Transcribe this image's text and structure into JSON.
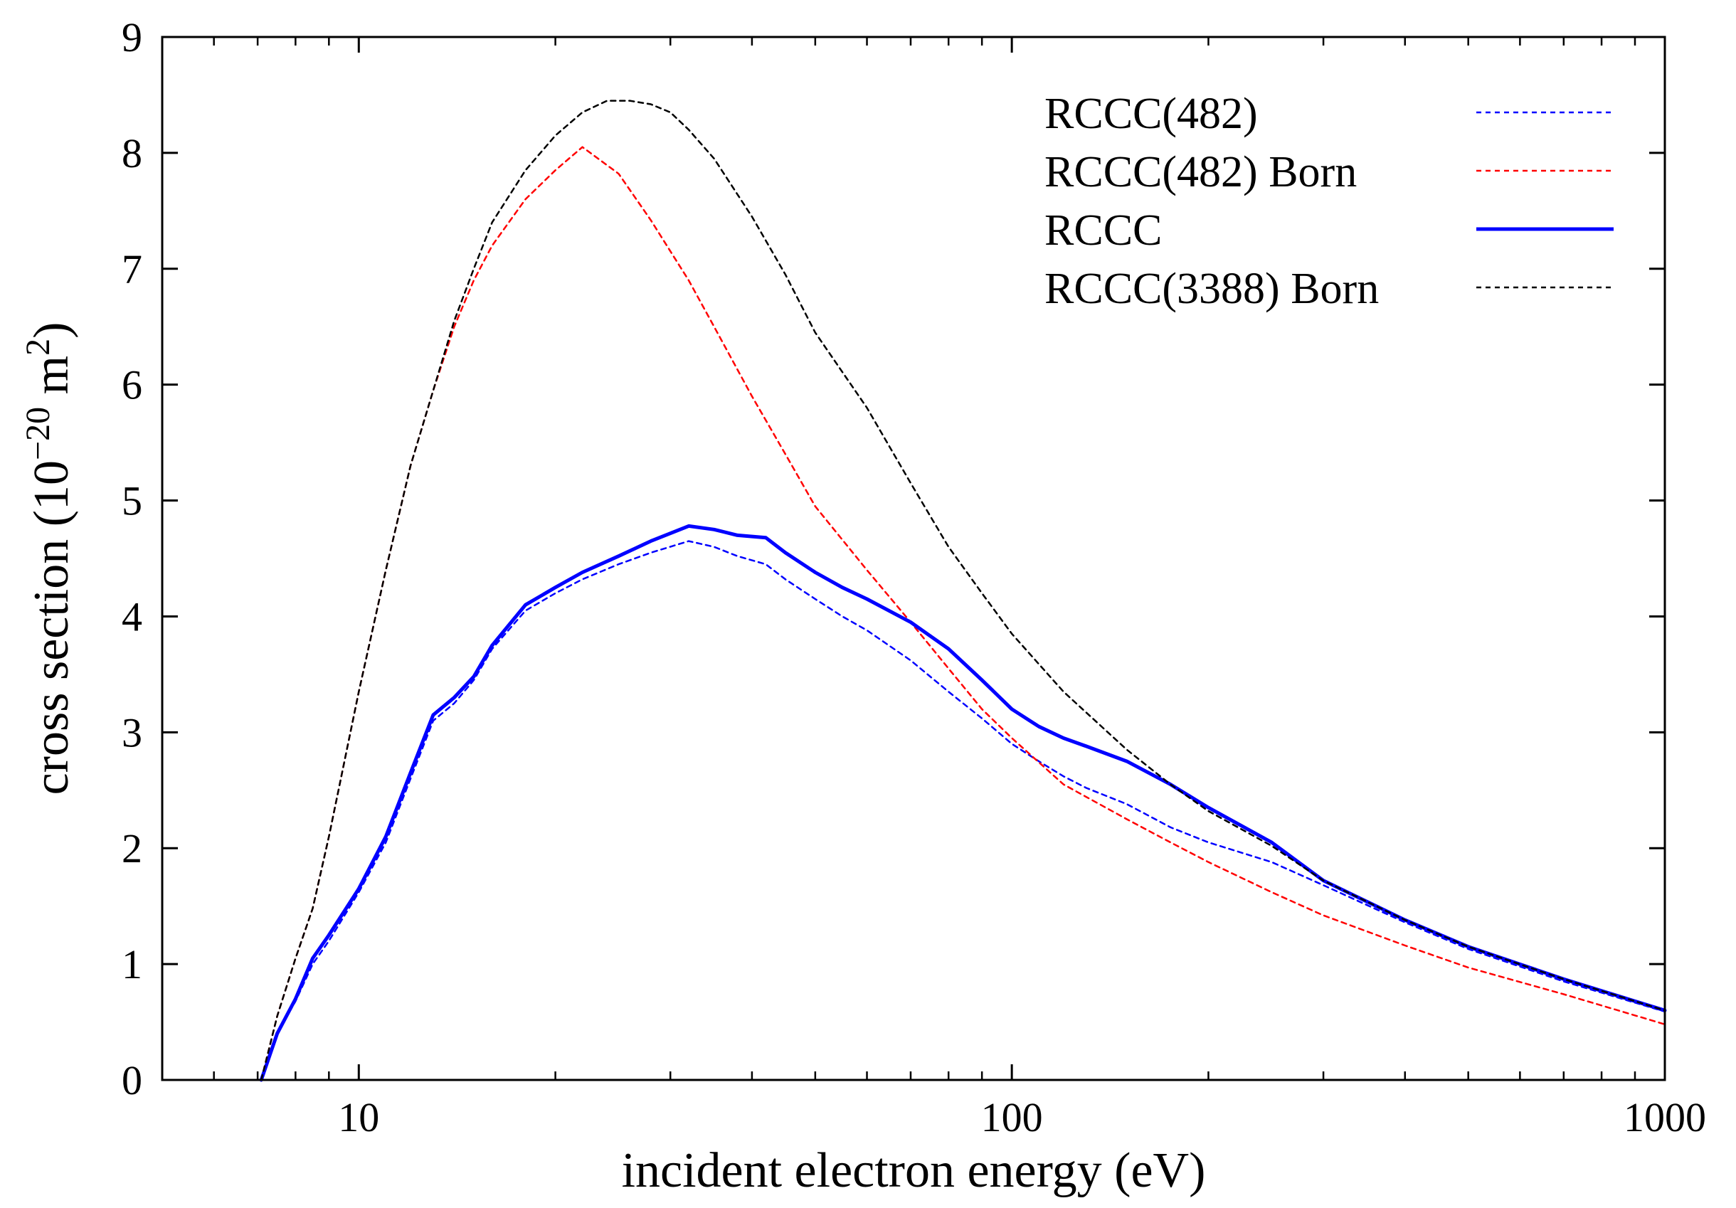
{
  "chart_data": {
    "type": "line",
    "title": "",
    "xlabel": "incident electron energy (eV)",
    "ylabel": {
      "prefix": "cross section (10",
      "exponent": "−20",
      "middle": " m",
      "exponent2": "2",
      "suffix": ")"
    },
    "xscale": "log",
    "xlim": [
      5,
      1000
    ],
    "ylim": [
      0,
      9
    ],
    "xticks": [
      10,
      100,
      1000
    ],
    "xtick_labels": [
      "10",
      "100",
      "1000"
    ],
    "yticks": [
      0,
      1,
      2,
      3,
      4,
      5,
      6,
      7,
      8,
      9
    ],
    "ytick_labels": [
      "0",
      "1",
      "2",
      "3",
      "4",
      "5",
      "6",
      "7",
      "8",
      "9"
    ],
    "legend_position": "top-right",
    "series": [
      {
        "name": "RCCC(482)",
        "color": "#0000ff",
        "style": "dashed",
        "x": [
          7.09,
          7.5,
          8,
          8.5,
          9,
          10,
          11,
          12,
          13,
          14,
          15,
          16,
          18,
          20,
          22,
          25,
          28,
          32,
          35,
          38,
          42,
          45,
          50,
          55,
          60,
          70,
          80,
          90,
          100,
          110,
          120,
          130,
          150,
          175,
          200,
          250,
          300,
          400,
          500,
          700,
          1000
        ],
        "values": [
          0,
          0.4,
          0.68,
          1.0,
          1.2,
          1.62,
          2.05,
          2.6,
          3.1,
          3.25,
          3.45,
          3.72,
          4.05,
          4.2,
          4.32,
          4.45,
          4.55,
          4.65,
          4.6,
          4.52,
          4.45,
          4.32,
          4.15,
          4.0,
          3.88,
          3.62,
          3.35,
          3.12,
          2.9,
          2.75,
          2.62,
          2.52,
          2.38,
          2.18,
          2.05,
          1.88,
          1.68,
          1.36,
          1.13,
          0.85,
          0.59
        ]
      },
      {
        "name": "RCCC(482) Born",
        "color": "#ff0000",
        "style": "dashed",
        "x": [
          7.09,
          7.5,
          8,
          8.5,
          9,
          10,
          11,
          12,
          13,
          14,
          15,
          16,
          18,
          20,
          22,
          25,
          28,
          32,
          35,
          40,
          45,
          50,
          60,
          70,
          80,
          90,
          100,
          120,
          150,
          175,
          200,
          250,
          300,
          400,
          500,
          700,
          1000
        ],
        "values": [
          0,
          0.55,
          1.05,
          1.48,
          2.1,
          3.35,
          4.4,
          5.3,
          5.95,
          6.5,
          6.9,
          7.2,
          7.6,
          7.85,
          8.05,
          7.82,
          7.42,
          6.9,
          6.5,
          5.9,
          5.4,
          4.95,
          4.4,
          3.95,
          3.55,
          3.2,
          2.95,
          2.55,
          2.25,
          2.05,
          1.88,
          1.62,
          1.42,
          1.16,
          0.97,
          0.74,
          0.48
        ]
      },
      {
        "name": "RCCC",
        "color": "#0000ff",
        "style": "solid",
        "x": [
          7.09,
          7.5,
          8,
          8.5,
          9,
          10,
          11,
          12,
          13,
          14,
          15,
          16,
          18,
          20,
          22,
          25,
          28,
          32,
          35,
          38,
          42,
          45,
          50,
          55,
          60,
          70,
          80,
          90,
          100,
          110,
          120,
          130,
          150,
          175,
          200,
          250,
          300,
          400,
          500,
          700,
          1000
        ],
        "values": [
          0,
          0.4,
          0.7,
          1.05,
          1.25,
          1.65,
          2.1,
          2.65,
          3.15,
          3.3,
          3.48,
          3.75,
          4.1,
          4.25,
          4.38,
          4.52,
          4.65,
          4.78,
          4.75,
          4.7,
          4.68,
          4.55,
          4.38,
          4.25,
          4.15,
          3.95,
          3.72,
          3.45,
          3.2,
          3.05,
          2.95,
          2.88,
          2.75,
          2.55,
          2.35,
          2.05,
          1.72,
          1.38,
          1.15,
          0.87,
          0.6
        ]
      },
      {
        "name": "RCCC(3388) Born",
        "color": "#000000",
        "style": "dashed",
        "x": [
          7.09,
          7.5,
          8,
          8.5,
          9,
          10,
          11,
          12,
          13,
          14,
          15,
          16,
          18,
          20,
          22,
          24,
          26,
          28,
          30,
          32,
          35,
          40,
          45,
          50,
          60,
          70,
          80,
          90,
          100,
          120,
          150,
          175,
          200,
          250,
          300,
          400,
          500,
          700,
          1000
        ],
        "values": [
          0,
          0.55,
          1.05,
          1.48,
          2.1,
          3.35,
          4.4,
          5.3,
          5.95,
          6.55,
          7.0,
          7.4,
          7.85,
          8.15,
          8.35,
          8.45,
          8.45,
          8.42,
          8.35,
          8.2,
          7.95,
          7.45,
          6.95,
          6.45,
          5.8,
          5.15,
          4.6,
          4.2,
          3.85,
          3.35,
          2.85,
          2.55,
          2.32,
          2.02,
          1.72,
          1.38,
          1.15,
          0.87,
          0.6
        ]
      }
    ]
  }
}
